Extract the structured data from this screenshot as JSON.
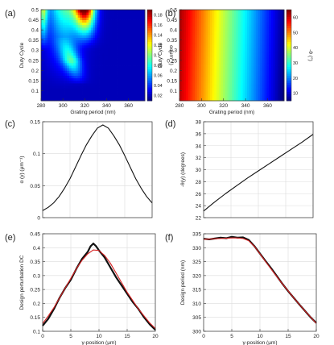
{
  "chart_data": [
    {
      "panel": "(a)",
      "type": "heatmap",
      "xlabel": "Grating period (nm)",
      "ylabel": "Duty Cycle",
      "xlim": [
        280,
        375
      ],
      "ylim": [
        0.05,
        0.5
      ],
      "xticks": [
        280,
        300,
        320,
        340,
        360
      ],
      "yticks": [
        0.1,
        0.15,
        0.2,
        0.25,
        0.3,
        0.35,
        0.4,
        0.45,
        0.5
      ],
      "colorbar": {
        "label": "α (μm⁻¹)",
        "ticks": [
          0.02,
          0.04,
          0.06,
          0.08,
          0.1,
          0.12,
          0.14,
          0.16,
          0.18
        ],
        "range": [
          0.01,
          0.19
        ]
      },
      "colormap": "jet"
    },
    {
      "panel": "(b)",
      "type": "heatmap",
      "xlabel": "Grating period (nm)",
      "ylabel": "Duty Cycle",
      "xlim": [
        280,
        375
      ],
      "ylim": [
        0.05,
        0.5
      ],
      "xticks": [
        280,
        300,
        320,
        340,
        360
      ],
      "yticks": [
        0.1,
        0.15,
        0.2,
        0.25,
        0.3,
        0.35,
        0.4,
        0.45,
        0.5
      ],
      "colorbar": {
        "label": "-θ (°)",
        "ticks": [
          10,
          20,
          30,
          40,
          50,
          60
        ],
        "range": [
          5,
          65
        ]
      },
      "colormap": "jet"
    },
    {
      "panel": "(c)",
      "type": "line",
      "xlabel": "",
      "ylabel": "α (y) (μm⁻¹)",
      "xlim": [
        0,
        20
      ],
      "ylim": [
        0,
        0.15
      ],
      "yticks": [
        0,
        0.05,
        0.1,
        0.15
      ],
      "series": [
        {
          "x": [
            0,
            1,
            2,
            3,
            4,
            5,
            6,
            7,
            8,
            9,
            10,
            11,
            12,
            13,
            14,
            15,
            16,
            17,
            18,
            19,
            20
          ],
          "y": [
            0.011,
            0.016,
            0.023,
            0.033,
            0.046,
            0.061,
            0.079,
            0.097,
            0.114,
            0.128,
            0.14,
            0.145,
            0.14,
            0.128,
            0.114,
            0.097,
            0.079,
            0.061,
            0.046,
            0.033,
            0.023
          ]
        }
      ]
    },
    {
      "panel": "(d)",
      "type": "line",
      "xlabel": "",
      "ylabel": "-θ(y) (degrees)",
      "xlim": [
        0,
        20
      ],
      "ylim": [
        22,
        38
      ],
      "yticks": [
        22,
        24,
        26,
        28,
        30,
        32,
        34,
        36,
        38
      ],
      "series": [
        {
          "x": [
            0,
            2,
            4,
            6,
            8,
            10,
            12,
            14,
            16,
            18,
            20
          ],
          "y": [
            23.1,
            24.6,
            26.0,
            27.3,
            28.6,
            29.8,
            31.0,
            32.2,
            33.4,
            34.6,
            35.9
          ]
        }
      ]
    },
    {
      "panel": "(e)",
      "type": "line",
      "xlabel": "y-position (μm)",
      "ylabel": "Design perturbation DC",
      "xlim": [
        0,
        20
      ],
      "ylim": [
        0.1,
        0.45
      ],
      "xticks": [
        0,
        5,
        10,
        15,
        20
      ],
      "yticks": [
        0.1,
        0.15,
        0.2,
        0.25,
        0.3,
        0.35,
        0.4,
        0.45
      ],
      "series": [
        {
          "color": "#111111",
          "x": [
            0,
            1,
            2,
            3,
            4,
            5,
            6,
            7,
            8,
            8.5,
            9,
            9.5,
            10,
            11,
            12,
            13,
            14,
            15,
            16,
            17,
            18,
            19,
            20
          ],
          "y": [
            0.12,
            0.145,
            0.18,
            0.22,
            0.255,
            0.285,
            0.325,
            0.36,
            0.385,
            0.405,
            0.415,
            0.405,
            0.39,
            0.365,
            0.33,
            0.295,
            0.265,
            0.235,
            0.205,
            0.18,
            0.15,
            0.125,
            0.105
          ]
        },
        {
          "color": "#d62020",
          "x": [
            0,
            1,
            2,
            3,
            4,
            5,
            6,
            7,
            8,
            9,
            10,
            11,
            12,
            13,
            14,
            15,
            16,
            17,
            18,
            19,
            20
          ],
          "y": [
            0.128,
            0.155,
            0.185,
            0.22,
            0.255,
            0.29,
            0.325,
            0.355,
            0.378,
            0.392,
            0.39,
            0.372,
            0.345,
            0.31,
            0.275,
            0.24,
            0.21,
            0.18,
            0.155,
            0.13,
            0.11
          ]
        }
      ]
    },
    {
      "panel": "(f)",
      "type": "line",
      "xlabel": "y-position (μm)",
      "ylabel": "Design period (nm)",
      "xlim": [
        0,
        20
      ],
      "ylim": [
        300,
        335
      ],
      "xticks": [
        0,
        5,
        10,
        15,
        20
      ],
      "yticks": [
        300,
        305,
        310,
        315,
        320,
        325,
        330,
        335
      ],
      "series": [
        {
          "color": "#111111",
          "x": [
            0,
            1,
            2,
            3,
            4,
            5,
            6,
            7,
            8,
            9,
            10,
            11,
            12,
            13,
            14,
            15,
            16,
            17,
            18,
            19,
            20
          ],
          "y": [
            333.2,
            333.0,
            333.3,
            333.6,
            333.4,
            333.9,
            333.6,
            333.7,
            332.8,
            330.6,
            327.9,
            325.2,
            322.6,
            319.8,
            317.0,
            314.4,
            312.0,
            309.6,
            307.3,
            305.0,
            303.0
          ]
        },
        {
          "color": "#d62020",
          "x": [
            0,
            1,
            2,
            3,
            4,
            5,
            6,
            7,
            8,
            9,
            10,
            11,
            12,
            13,
            14,
            15,
            16,
            17,
            18,
            19,
            20
          ],
          "y": [
            333.0,
            333.1,
            333.2,
            333.3,
            333.4,
            333.5,
            333.5,
            333.3,
            332.5,
            330.5,
            327.8,
            325.0,
            322.3,
            319.6,
            317.0,
            314.5,
            312.0,
            309.6,
            307.3,
            305.1,
            302.8
          ]
        }
      ]
    }
  ]
}
